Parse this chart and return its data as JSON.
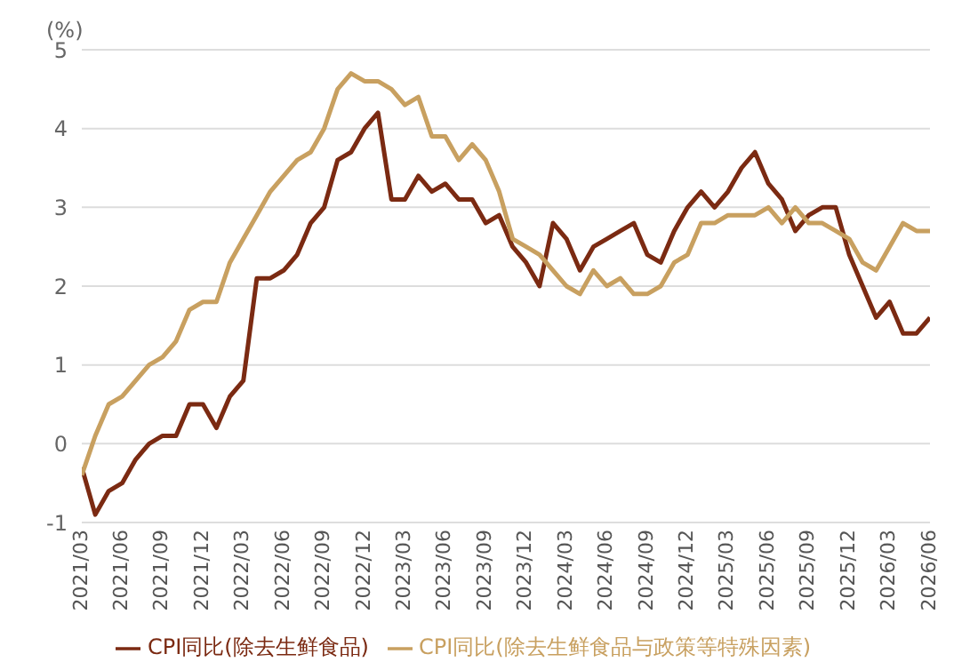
{
  "chart_data": {
    "type": "line",
    "ylabel": "(%)",
    "categories": [
      "2021/03",
      null,
      null,
      "2021/06",
      null,
      null,
      "2021/09",
      null,
      null,
      "2021/12",
      null,
      null,
      "2022/03",
      null,
      null,
      "2022/06",
      null,
      null,
      "2022/09",
      null,
      null,
      "2022/12",
      null,
      null,
      "2023/03",
      null,
      null,
      "2023/06",
      null,
      null,
      "2023/09",
      null,
      null,
      "2023/12",
      null,
      null,
      "2024/03",
      null,
      null,
      "2024/06",
      null,
      null,
      "2024/09",
      null,
      null,
      "2024/12",
      null,
      null,
      "2025/03",
      null,
      null,
      "2025/06",
      null,
      null,
      "2025/09",
      null,
      null,
      "2025/12",
      null,
      null,
      "2026/03",
      null,
      null,
      "2026/06"
    ],
    "series": [
      {
        "name": "CPI同比(除去生鲜食品)",
        "color": "#7b2a12",
        "values": [
          -0.3,
          -0.9,
          -0.6,
          -0.5,
          -0.2,
          0.0,
          0.1,
          0.1,
          0.5,
          0.5,
          0.2,
          0.6,
          0.8,
          2.1,
          2.1,
          2.2,
          2.4,
          2.8,
          3.0,
          3.6,
          3.7,
          4.0,
          4.2,
          3.1,
          3.1,
          3.4,
          3.2,
          3.3,
          3.1,
          3.1,
          2.8,
          2.9,
          2.5,
          2.3,
          2.0,
          2.8,
          2.6,
          2.2,
          2.5,
          2.6,
          2.7,
          2.8,
          2.4,
          2.3,
          2.7,
          3.0,
          3.2,
          3.0,
          3.2,
          3.5,
          3.7,
          3.3,
          3.1,
          2.7,
          2.9,
          3.0,
          3.0,
          2.4,
          2.0,
          1.6,
          1.8,
          1.4,
          1.4,
          1.6
        ]
      },
      {
        "name": "CPI同比(除去生鲜食品与政策等特殊因素)",
        "color": "#c8a060",
        "values": [
          -0.4,
          0.1,
          0.5,
          0.6,
          0.8,
          1.0,
          1.1,
          1.3,
          1.7,
          1.8,
          1.8,
          2.3,
          2.6,
          2.9,
          3.2,
          3.4,
          3.6,
          3.7,
          4.0,
          4.5,
          4.7,
          4.6,
          4.6,
          4.5,
          4.3,
          4.4,
          3.9,
          3.9,
          3.6,
          3.8,
          3.6,
          3.2,
          2.6,
          2.5,
          2.4,
          2.2,
          2.0,
          1.9,
          2.2,
          2.0,
          2.1,
          1.9,
          1.9,
          2.0,
          2.3,
          2.4,
          2.8,
          2.8,
          2.9,
          2.9,
          2.9,
          3.0,
          2.8,
          3.0,
          2.8,
          2.8,
          2.7,
          2.6,
          2.3,
          2.2,
          2.5,
          2.8,
          2.7,
          2.7
        ]
      }
    ],
    "ylim": [
      -1,
      5
    ],
    "yticks": [
      -1,
      0,
      1,
      2,
      3,
      4,
      5
    ],
    "grid": "y",
    "legend": "bottom",
    "line_style": "solid",
    "marker": "none"
  }
}
